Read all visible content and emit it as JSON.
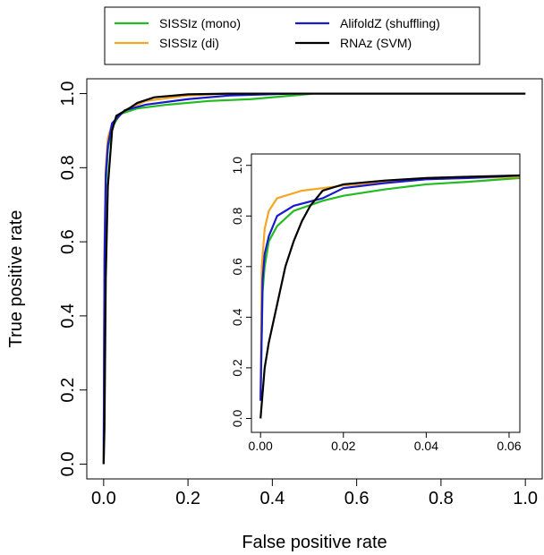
{
  "chart_data": [
    {
      "type": "line",
      "xlabel": "False positive rate",
      "ylabel": "True positive rate",
      "legend": "top",
      "xlim": [
        -0.04,
        1.04
      ],
      "ylim": [
        -0.04,
        1.04
      ],
      "xticks": [
        {
          "value": 0,
          "label": "0.0"
        },
        0.2,
        0.4,
        0.6,
        0.8,
        {
          "value": 1,
          "label": "1.0"
        }
      ],
      "yticks": [
        {
          "value": 0,
          "label": "0.0"
        },
        0.2,
        0.4,
        0.6,
        0.8,
        {
          "value": 1,
          "label": "1.0"
        }
      ],
      "series": [
        {
          "name": "SISSIz (mono)",
          "color": "#22bb22",
          "x": [
            0,
            0.002,
            0.005,
            0.01,
            0.02,
            0.04,
            0.08,
            0.15,
            0.25,
            0.35,
            0.45,
            0.5,
            1
          ],
          "values": [
            0,
            0.5,
            0.75,
            0.85,
            0.91,
            0.945,
            0.96,
            0.97,
            0.98,
            0.985,
            0.995,
            1,
            1
          ]
        },
        {
          "name": "SISSIz (di)",
          "color": "#f5a623",
          "x": [
            0,
            0.002,
            0.005,
            0.01,
            0.02,
            0.05,
            0.1,
            0.2,
            0.3,
            1
          ],
          "values": [
            0,
            0.6,
            0.8,
            0.88,
            0.92,
            0.955,
            0.98,
            0.995,
            1,
            1
          ]
        },
        {
          "name": "AlifoldZ (shuffling)",
          "color": "#1a1acc",
          "x": [
            0,
            0.002,
            0.005,
            0.01,
            0.02,
            0.05,
            0.1,
            0.2,
            0.3,
            0.45,
            1
          ],
          "values": [
            0,
            0.55,
            0.78,
            0.86,
            0.92,
            0.955,
            0.97,
            0.985,
            0.995,
            1,
            1
          ]
        },
        {
          "name": "RNAz (SVM)",
          "color": "#000000",
          "x": [
            0,
            0.002,
            0.005,
            0.01,
            0.02,
            0.03,
            0.06,
            0.08,
            0.12,
            0.2,
            0.3,
            1
          ],
          "values": [
            0,
            0.1,
            0.5,
            0.75,
            0.9,
            0.94,
            0.96,
            0.975,
            0.99,
            0.998,
            1,
            1
          ]
        }
      ]
    },
    {
      "type": "line",
      "xlim": [
        -0.0022,
        0.0626
      ],
      "ylim": [
        -0.055,
        1.045
      ],
      "xticks": [
        {
          "value": 0,
          "label": "0.00"
        },
        {
          "value": 0.02,
          "label": "0.02"
        },
        {
          "value": 0.04,
          "label": "0.04"
        },
        {
          "value": 0.06,
          "label": "0.06"
        }
      ],
      "yticks": [
        {
          "value": 0,
          "label": "0.0"
        },
        0.2,
        0.4,
        0.6,
        0.8,
        {
          "value": 1,
          "label": "1.0"
        }
      ],
      "series": [
        {
          "color": "#22bb22",
          "x": [
            0,
            0.0005,
            0.001,
            0.002,
            0.004,
            0.008,
            0.015,
            0.02,
            0.03,
            0.04,
            0.05,
            0.0626
          ],
          "values": [
            0.07,
            0.5,
            0.6,
            0.7,
            0.76,
            0.82,
            0.86,
            0.88,
            0.905,
            0.925,
            0.935,
            0.95
          ]
        },
        {
          "color": "#f5a623",
          "x": [
            0,
            0.0003,
            0.001,
            0.002,
            0.004,
            0.01,
            0.02,
            0.03,
            0.04,
            0.05,
            0.0626
          ],
          "values": [
            0.07,
            0.6,
            0.75,
            0.82,
            0.87,
            0.9,
            0.92,
            0.935,
            0.945,
            0.95,
            0.955
          ]
        },
        {
          "color": "#1a1acc",
          "x": [
            0,
            0.0005,
            0.001,
            0.002,
            0.004,
            0.008,
            0.015,
            0.02,
            0.03,
            0.04,
            0.05,
            0.0626
          ],
          "values": [
            0.07,
            0.55,
            0.65,
            0.72,
            0.8,
            0.84,
            0.87,
            0.91,
            0.93,
            0.945,
            0.95,
            0.96
          ]
        },
        {
          "color": "#000000",
          "x": [
            0,
            0.0005,
            0.001,
            0.002,
            0.004,
            0.006,
            0.008,
            0.01,
            0.012,
            0.015,
            0.02,
            0.03,
            0.04,
            0.05,
            0.0626
          ],
          "values": [
            0,
            0.1,
            0.2,
            0.3,
            0.45,
            0.6,
            0.7,
            0.78,
            0.84,
            0.9,
            0.925,
            0.94,
            0.95,
            0.955,
            0.96
          ]
        }
      ]
    }
  ]
}
